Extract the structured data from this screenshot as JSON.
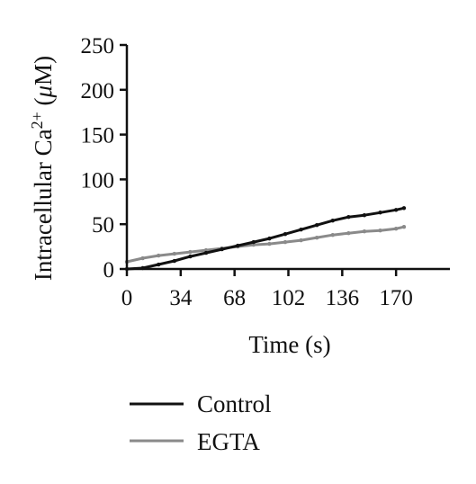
{
  "chart_data": {
    "type": "line",
    "title": "",
    "xlabel": "Time (s)",
    "ylabel_main": "Intracellular Ca",
    "ylabel_sup": "2+",
    "ylabel_unit_open": " (",
    "ylabel_unit_mu": "μ",
    "ylabel_unit_rest": "M)",
    "xlim": [
      0,
      204
    ],
    "ylim": [
      0,
      250
    ],
    "x_ticks": [
      0,
      34,
      68,
      102,
      136,
      170
    ],
    "y_ticks": [
      0,
      50,
      100,
      150,
      200,
      250
    ],
    "grid": false,
    "legend_position": "bottom-left",
    "series": [
      {
        "name": "Control",
        "color": "#111111",
        "x": [
          0,
          10,
          20,
          30,
          40,
          50,
          60,
          70,
          80,
          90,
          100,
          110,
          120,
          130,
          140,
          150,
          160,
          170,
          175
        ],
        "y": [
          0,
          1,
          5,
          9,
          14,
          18,
          22,
          26,
          30,
          34,
          39,
          44,
          49,
          54,
          58,
          60,
          63,
          66,
          68
        ]
      },
      {
        "name": "EGTA",
        "color": "#8a8a8a",
        "x": [
          0,
          10,
          20,
          30,
          40,
          50,
          60,
          70,
          80,
          90,
          100,
          110,
          120,
          130,
          140,
          150,
          160,
          170,
          175
        ],
        "y": [
          8,
          12,
          15,
          17,
          19,
          21,
          23,
          25,
          27,
          28,
          30,
          32,
          35,
          38,
          40,
          42,
          43,
          45,
          47
        ]
      }
    ]
  }
}
